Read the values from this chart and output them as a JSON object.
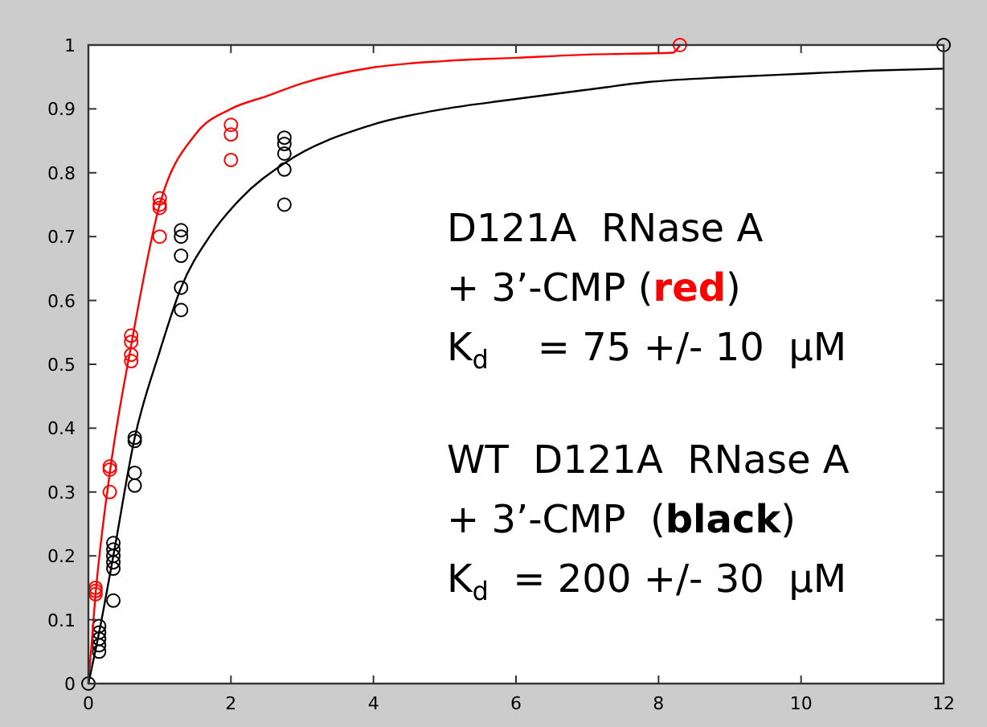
{
  "chart_data": {
    "type": "scatter",
    "xlim": [
      0,
      12
    ],
    "ylim": [
      0,
      1
    ],
    "xticks": [
      0,
      2,
      4,
      6,
      8,
      10,
      12
    ],
    "yticks": [
      0,
      0.1,
      0.2,
      0.3,
      0.4,
      0.5,
      0.6,
      0.7,
      0.8,
      0.9,
      1
    ],
    "grid": false,
    "marker": "circle",
    "series": [
      {
        "color": "#ff0000",
        "x": [
          0.1,
          0.1,
          0.1,
          0.3,
          0.3,
          0.3,
          0.6,
          0.6,
          0.6,
          0.6,
          1,
          1,
          1,
          1,
          2,
          2,
          2,
          8.3
        ],
        "values": [
          0.15,
          0.145,
          0.14,
          0.34,
          0.335,
          0.3,
          0.545,
          0.535,
          0.515,
          0.505,
          0.76,
          0.75,
          0.745,
          0.7,
          0.875,
          0.86,
          0.82,
          1
        ]
      },
      {
        "color": "#000000",
        "x": [
          0,
          0.15,
          0.15,
          0.15,
          0.15,
          0.15,
          0.35,
          0.35,
          0.35,
          0.35,
          0.35,
          0.35,
          0.65,
          0.65,
          0.65,
          0.65,
          1.3,
          1.3,
          1.3,
          1.3,
          1.3,
          2.75,
          2.75,
          2.75,
          2.75,
          2.75,
          12
        ],
        "values": [
          0,
          0.09,
          0.08,
          0.07,
          0.06,
          0.05,
          0.22,
          0.21,
          0.2,
          0.19,
          0.18,
          0.13,
          0.385,
          0.38,
          0.33,
          0.31,
          0.71,
          0.7,
          0.67,
          0.62,
          0.585,
          0.855,
          0.845,
          0.83,
          0.805,
          0.75,
          1
        ]
      },
      {
        "type": "line",
        "marker": "none",
        "color": "#ff0000",
        "x": [
          0,
          0.1,
          0.3,
          0.6,
          1,
          1.5,
          2,
          2.5,
          3,
          4,
          5,
          6,
          7,
          8.2,
          8.3
        ],
        "values": [
          0,
          0.14,
          0.33,
          0.53,
          0.75,
          0.86,
          0.9,
          0.92,
          0.94,
          0.965,
          0.975,
          0.98,
          0.985,
          0.988,
          1
        ]
      },
      {
        "type": "line",
        "marker": "none",
        "color": "#000000",
        "x": [
          0,
          0.15,
          0.35,
          0.65,
          1,
          1.3,
          1.7,
          2.14,
          2.75,
          3.95,
          5,
          5.9,
          7,
          7.85,
          9,
          10,
          11,
          12
        ],
        "values": [
          0,
          0.08,
          0.2,
          0.385,
          0.52,
          0.62,
          0.7,
          0.76,
          0.815,
          0.874,
          0.9,
          0.914,
          0.93,
          0.942,
          0.95,
          0.955,
          0.96,
          0.963
        ]
      }
    ],
    "annotations": [
      "D121A  RNase A",
      "+ 3’-CMP (red)",
      "K$_{d}$    = 75 +/- 10  μM",
      "WT  D121A  RNase A",
      "+ 3’-CMP  (black)",
      "K$_{d}$  = 200 +/- 30  μM"
    ]
  }
}
